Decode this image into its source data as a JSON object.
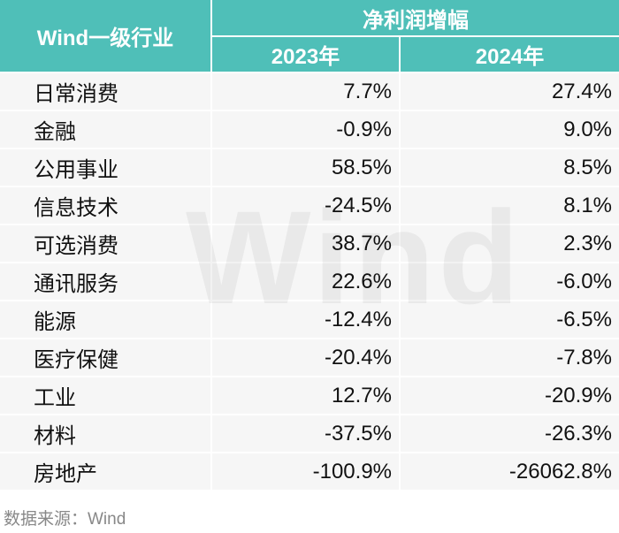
{
  "header": {
    "industry": "Wind一级行业",
    "metric": "净利润增幅",
    "years": [
      "2023年",
      "2024年"
    ]
  },
  "table": {
    "rows": [
      [
        "日常消费",
        "7.7%",
        "27.4%"
      ],
      [
        "金融",
        "-0.9%",
        "9.0%"
      ],
      [
        "公用事业",
        "58.5%",
        "8.5%"
      ],
      [
        "信息技术",
        "-24.5%",
        "8.1%"
      ],
      [
        "可选消费",
        "38.7%",
        "2.3%"
      ],
      [
        "通讯服务",
        "22.6%",
        "-6.0%"
      ],
      [
        "能源",
        "-12.4%",
        "-6.5%"
      ],
      [
        "医疗保健",
        "-20.4%",
        "-7.8%"
      ],
      [
        "工业",
        "12.7%",
        "-20.9%"
      ],
      [
        "材料",
        "-37.5%",
        "-26.3%"
      ],
      [
        "房地产",
        "-100.9%",
        "-26062.8%"
      ]
    ]
  },
  "watermark": "Wind",
  "source": "数据来源：Wind"
}
